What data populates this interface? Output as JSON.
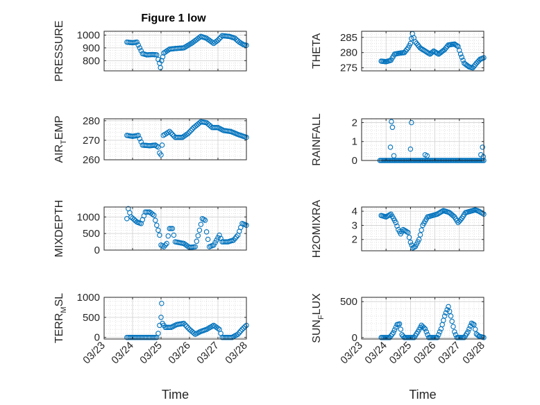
{
  "figure_title": "Figure 1 low",
  "x_axis_label": "Time",
  "x_tick_labels": [
    "03/23",
    "03/24",
    "03/25",
    "03/26",
    "03/27",
    "03/28"
  ],
  "marker_color": "#0072bd",
  "chart_data": [
    {
      "type": "scatter",
      "id": "pressure",
      "ylabel": "PRESSURE",
      "xlim": [
        0,
        5
      ],
      "ylim": [
        720,
        1030
      ],
      "yticks": [
        800,
        900,
        1000
      ],
      "xticks": [
        "03/23",
        "03/24",
        "03/25",
        "03/26",
        "03/27",
        "03/28"
      ],
      "grid": true,
      "anchors": [
        [
          0.8,
          945
        ],
        [
          1.0,
          940
        ],
        [
          1.15,
          945
        ],
        [
          1.25,
          900
        ],
        [
          1.35,
          855
        ],
        [
          1.5,
          845
        ],
        [
          1.7,
          848
        ],
        [
          1.85,
          845
        ],
        [
          1.9,
          810
        ],
        [
          1.95,
          780
        ],
        [
          1.98,
          745
        ],
        [
          2.02,
          800
        ],
        [
          2.1,
          860
        ],
        [
          2.3,
          890
        ],
        [
          2.5,
          895
        ],
        [
          2.8,
          900
        ],
        [
          3.1,
          940
        ],
        [
          3.4,
          990
        ],
        [
          3.6,
          975
        ],
        [
          3.85,
          935
        ],
        [
          4.0,
          960
        ],
        [
          4.15,
          995
        ],
        [
          4.4,
          990
        ],
        [
          4.6,
          975
        ],
        [
          4.75,
          945
        ],
        [
          4.9,
          925
        ],
        [
          5.0,
          920
        ]
      ],
      "series": [
        {
          "x": [],
          "y": []
        }
      ]
    },
    {
      "type": "scatter",
      "id": "theta",
      "ylabel": "THETA",
      "xlim": [
        0,
        5
      ],
      "ylim": [
        274,
        287
      ],
      "yticks": [
        275,
        280,
        285
      ],
      "xticks": [
        "03/23",
        "03/24",
        "03/25",
        "03/26",
        "03/27",
        "03/28"
      ],
      "grid": true,
      "anchors": [
        [
          0.8,
          277.2
        ],
        [
          1.0,
          277.0
        ],
        [
          1.2,
          277.5
        ],
        [
          1.35,
          279.5
        ],
        [
          1.55,
          279.8
        ],
        [
          1.75,
          280.0
        ],
        [
          1.9,
          281.5
        ],
        [
          2.0,
          283
        ],
        [
          2.08,
          286.2
        ],
        [
          2.2,
          283.5
        ],
        [
          2.4,
          281.5
        ],
        [
          2.6,
          280.5
        ],
        [
          2.8,
          279.5
        ],
        [
          2.95,
          280.5
        ],
        [
          3.15,
          279.5
        ],
        [
          3.4,
          281.0
        ],
        [
          3.55,
          282.5
        ],
        [
          3.8,
          282.8
        ],
        [
          3.95,
          282.0
        ],
        [
          4.05,
          279.5
        ],
        [
          4.2,
          276.5
        ],
        [
          4.4,
          275.3
        ],
        [
          4.55,
          275.0
        ],
        [
          4.7,
          276.5
        ],
        [
          4.85,
          277.8
        ],
        [
          5.0,
          278.3
        ]
      ],
      "series": [
        {
          "x": [],
          "y": []
        }
      ]
    },
    {
      "type": "scatter",
      "id": "air_temp",
      "ylabel": "AIR_TEMP",
      "xlim": [
        0,
        5
      ],
      "ylim": [
        260,
        281
      ],
      "yticks": [
        260,
        270,
        280
      ],
      "xticks": [
        "03/23",
        "03/24",
        "03/25",
        "03/26",
        "03/27",
        "03/28"
      ],
      "grid": true,
      "anchors": [
        [
          0.8,
          272.5
        ],
        [
          1.0,
          272.0
        ],
        [
          1.2,
          272.5
        ],
        [
          1.35,
          267.5
        ],
        [
          1.6,
          267.2
        ],
        [
          1.8,
          267.5
        ],
        [
          1.9,
          266.5
        ],
        [
          1.95,
          263.5
        ],
        [
          2.0,
          262.5
        ],
        [
          2.08,
          272.5
        ],
        [
          2.3,
          274.5
        ],
        [
          2.5,
          271.5
        ],
        [
          2.75,
          271.5
        ],
        [
          2.95,
          273.5
        ],
        [
          3.15,
          276.5
        ],
        [
          3.4,
          279.5
        ],
        [
          3.6,
          279.0
        ],
        [
          3.8,
          276.5
        ],
        [
          4.0,
          276.5
        ],
        [
          4.2,
          275.0
        ],
        [
          4.45,
          274.5
        ],
        [
          4.7,
          273.0
        ],
        [
          4.9,
          272.0
        ],
        [
          5.0,
          271.5
        ]
      ],
      "series": [
        {
          "x": [],
          "y": []
        }
      ]
    },
    {
      "type": "scatter",
      "id": "rainfall",
      "ylabel": "RAINFALL",
      "xlim": [
        0,
        5
      ],
      "ylim": [
        0,
        2.2
      ],
      "yticks": [
        0,
        1,
        2
      ],
      "xticks": [
        "03/23",
        "03/24",
        "03/25",
        "03/26",
        "03/27",
        "03/28"
      ],
      "grid": true,
      "anchors": [
        [
          0.75,
          0
        ],
        [
          5.0,
          0
        ]
      ],
      "spikes": [
        [
          1.18,
          0.7
        ],
        [
          1.22,
          2.05
        ],
        [
          1.26,
          1.75
        ],
        [
          1.32,
          0.25
        ],
        [
          2.0,
          0.6
        ],
        [
          2.04,
          2.0
        ],
        [
          2.6,
          0.3
        ],
        [
          2.68,
          0.25
        ],
        [
          4.88,
          0.3
        ],
        [
          4.95,
          0.7
        ],
        [
          4.98,
          0.2
        ]
      ],
      "series": [
        {
          "x": [],
          "y": []
        }
      ]
    },
    {
      "type": "scatter",
      "id": "mixdepth",
      "ylabel": "MIXDEPTH",
      "xlim": [
        0,
        5
      ],
      "ylim": [
        0,
        1300
      ],
      "yticks": [
        0,
        500,
        1000
      ],
      "xticks": [
        "03/23",
        "03/24",
        "03/25",
        "03/26",
        "03/27",
        "03/28"
      ],
      "grid": true,
      "anchors": [
        [
          0.8,
          950
        ],
        [
          0.85,
          1250
        ],
        [
          0.95,
          1000
        ],
        [
          1.15,
          850
        ],
        [
          1.3,
          800
        ],
        [
          1.45,
          1150
        ],
        [
          1.6,
          1150
        ],
        [
          1.75,
          1050
        ],
        [
          1.85,
          750
        ],
        [
          1.95,
          450
        ],
        [
          2.0,
          150
        ],
        [
          2.1,
          100
        ],
        [
          2.2,
          200
        ],
        [
          2.3,
          650
        ],
        [
          2.4,
          650
        ],
        [
          2.5,
          250
        ],
        [
          2.8,
          200
        ],
        [
          3.0,
          80
        ],
        [
          3.2,
          100
        ],
        [
          3.35,
          600
        ],
        [
          3.45,
          950
        ],
        [
          3.55,
          900
        ],
        [
          3.6,
          550
        ],
        [
          3.7,
          100
        ],
        [
          3.85,
          150
        ],
        [
          4.05,
          450
        ],
        [
          4.15,
          250
        ],
        [
          4.35,
          250
        ],
        [
          4.55,
          300
        ],
        [
          4.7,
          450
        ],
        [
          4.85,
          800
        ],
        [
          5.0,
          750
        ]
      ],
      "series": [
        {
          "x": [],
          "y": []
        }
      ]
    },
    {
      "type": "scatter",
      "id": "h2omixra",
      "ylabel": "H2OMIXRA",
      "xlim": [
        0,
        5
      ],
      "ylim": [
        1.2,
        4.3
      ],
      "yticks": [
        2,
        3,
        4
      ],
      "xticks": [
        "03/23",
        "03/24",
        "03/25",
        "03/26",
        "03/27",
        "03/28"
      ],
      "grid": true,
      "anchors": [
        [
          0.8,
          3.7
        ],
        [
          1.0,
          3.6
        ],
        [
          1.2,
          3.8
        ],
        [
          1.4,
          3.2
        ],
        [
          1.5,
          2.7
        ],
        [
          1.6,
          2.4
        ],
        [
          1.7,
          2.7
        ],
        [
          1.9,
          2.5
        ],
        [
          2.0,
          1.8
        ],
        [
          2.1,
          1.4
        ],
        [
          2.2,
          1.5
        ],
        [
          2.35,
          2.0
        ],
        [
          2.5,
          3.0
        ],
        [
          2.7,
          3.6
        ],
        [
          2.9,
          3.7
        ],
        [
          3.1,
          3.8
        ],
        [
          3.35,
          4.05
        ],
        [
          3.6,
          3.9
        ],
        [
          3.8,
          3.6
        ],
        [
          3.95,
          3.2
        ],
        [
          4.1,
          3.5
        ],
        [
          4.25,
          3.9
        ],
        [
          4.45,
          4.0
        ],
        [
          4.65,
          4.1
        ],
        [
          4.8,
          4.0
        ],
        [
          5.0,
          3.8
        ]
      ],
      "series": [
        {
          "x": [],
          "y": []
        }
      ]
    },
    {
      "type": "scatter",
      "id": "terr_msl",
      "ylabel": "TERR_MSL",
      "xlim": [
        0,
        5
      ],
      "ylim": [
        -40,
        1000
      ],
      "yticks": [
        0,
        500,
        1000
      ],
      "xticks": [
        "03/23",
        "03/24",
        "03/25",
        "03/26",
        "03/27",
        "03/28"
      ],
      "grid": true,
      "anchors": [
        [
          0.8,
          0
        ],
        [
          1.7,
          0
        ],
        [
          1.85,
          0
        ],
        [
          1.9,
          100
        ],
        [
          1.95,
          300
        ],
        [
          2.0,
          500
        ],
        [
          2.05,
          350
        ],
        [
          2.15,
          250
        ],
        [
          2.35,
          250
        ],
        [
          2.55,
          320
        ],
        [
          2.8,
          350
        ],
        [
          3.0,
          200
        ],
        [
          3.2,
          80
        ],
        [
          3.4,
          150
        ],
        [
          3.6,
          200
        ],
        [
          3.85,
          300
        ],
        [
          4.05,
          200
        ],
        [
          4.15,
          0
        ],
        [
          4.5,
          0
        ],
        [
          4.7,
          80
        ],
        [
          4.85,
          200
        ],
        [
          5.0,
          300
        ]
      ],
      "spikes": [
        [
          2.02,
          850
        ]
      ],
      "series": [
        {
          "x": [],
          "y": []
        }
      ]
    },
    {
      "type": "scatter",
      "id": "sun_flux",
      "ylabel": "SUN_FLUX",
      "xlim": [
        0,
        5
      ],
      "ylim": [
        -20,
        560
      ],
      "yticks": [
        0,
        500
      ],
      "xticks": [
        "03/23",
        "03/24",
        "03/25",
        "03/26",
        "03/27",
        "03/28"
      ],
      "grid": true,
      "anchors": [
        [
          0.8,
          0
        ],
        [
          1.15,
          0
        ],
        [
          1.3,
          70
        ],
        [
          1.45,
          180
        ],
        [
          1.55,
          190
        ],
        [
          1.65,
          40
        ],
        [
          1.75,
          0
        ],
        [
          2.15,
          0
        ],
        [
          2.3,
          80
        ],
        [
          2.45,
          170
        ],
        [
          2.6,
          120
        ],
        [
          2.75,
          0
        ],
        [
          3.1,
          0
        ],
        [
          3.25,
          120
        ],
        [
          3.4,
          300
        ],
        [
          3.55,
          430
        ],
        [
          3.65,
          300
        ],
        [
          3.8,
          80
        ],
        [
          3.9,
          0
        ],
        [
          4.2,
          0
        ],
        [
          4.35,
          80
        ],
        [
          4.5,
          200
        ],
        [
          4.6,
          180
        ],
        [
          4.7,
          50
        ],
        [
          4.8,
          20
        ],
        [
          5.0,
          0
        ]
      ],
      "series": [
        {
          "x": [],
          "y": []
        }
      ]
    }
  ]
}
